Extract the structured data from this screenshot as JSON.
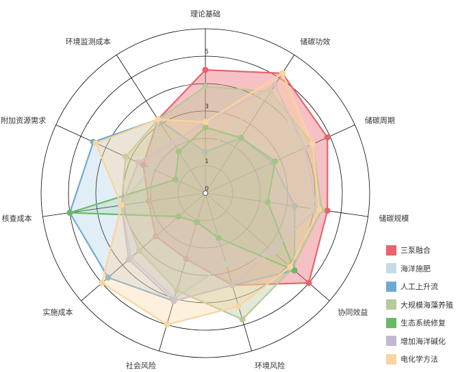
{
  "chart_data": {
    "type": "radar",
    "axes": [
      "理论基础",
      "储碳功效",
      "储碳周期",
      "储碳规模",
      "协同效益",
      "环境风险",
      "社会风险",
      "实施成本",
      "核查成本",
      "附加资源需求",
      "环境监测成本"
    ],
    "r_ticks": [
      {
        "value": 0,
        "label": "0"
      },
      {
        "value": 1,
        "label": "1"
      },
      {
        "value": 3,
        "label": "3"
      },
      {
        "value": 5,
        "label": "5"
      }
    ],
    "rmax": 6,
    "series": [
      {
        "name": "三泵融合",
        "color": "#e8636b",
        "fill_opacity": 0.4,
        "values": [
          4.5,
          5.2,
          4.9,
          4.5,
          5.0,
          3.5,
          2.5,
          2.4,
          2.1,
          2.5,
          3.2
        ]
      },
      {
        "name": "海洋施肥",
        "color": "#c4dcea",
        "fill_opacity": 0.2,
        "values": [
          1.5,
          4.4,
          4.0,
          4.0,
          3.3,
          2.7,
          4.0,
          3.6,
          3.1,
          2.2,
          3.2
        ]
      },
      {
        "name": "人工上升流",
        "color": "#6fa9d2",
        "fill_opacity": 0.2,
        "values": [
          1.5,
          2.4,
          2.7,
          3.3,
          4.3,
          3.5,
          4.1,
          4.7,
          5.0,
          4.5,
          3.2
        ]
      },
      {
        "name": "大规模海藻养殖",
        "color": "#b8c99a",
        "fill_opacity": 0.4,
        "values": [
          3.9,
          4.4,
          4.3,
          4.3,
          4.2,
          4.8,
          3.7,
          3.2,
          3.1,
          3.2,
          3.2
        ]
      },
      {
        "name": "生态系统修复",
        "color": "#66bb66",
        "fill_opacity": 0.15,
        "values": [
          2.4,
          2.4,
          2.8,
          2.3,
          4.3,
          1.7,
          1.1,
          1.3,
          5.0,
          1.2,
          1.8
        ]
      },
      {
        "name": "增加海洋碱化",
        "color": "#c3b7d3",
        "fill_opacity": 0.2,
        "values": [
          2.6,
          4.7,
          4.0,
          4.1,
          3.2,
          3.5,
          4.1,
          3.7,
          3.1,
          2.7,
          2.2
        ]
      },
      {
        "name": "电化学方法",
        "color": "#fad49e",
        "fill_opacity": 0.35,
        "values": [
          2.6,
          5.2,
          4.3,
          4.2,
          4.1,
          4.3,
          5.0,
          5.0,
          3.1,
          4.4,
          3.2
        ]
      }
    ]
  }
}
